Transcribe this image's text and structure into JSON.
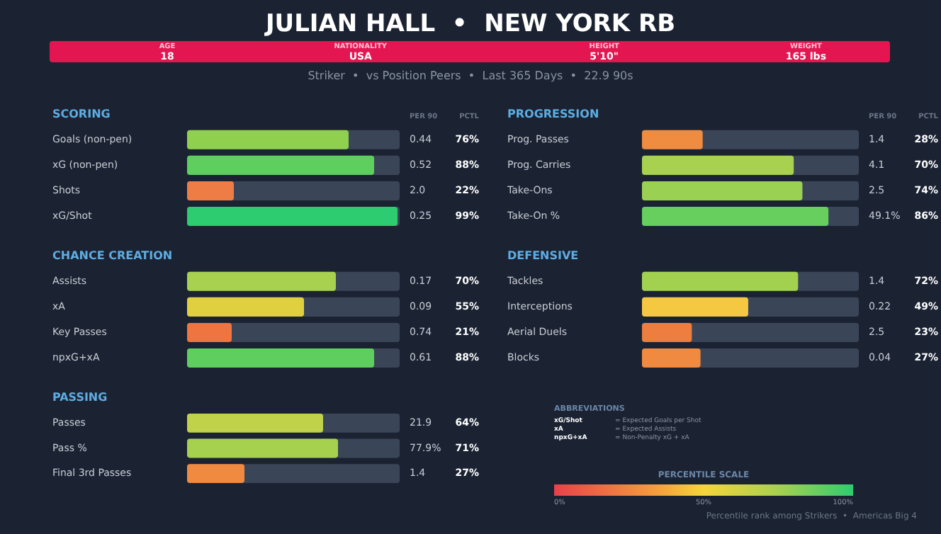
{
  "chart_data": [
    {
      "type": "other",
      "title": "JULIAN HALL  •  NEW YORK RB",
      "subtitle": "Striker  •  vs Position Peers  •  Last 365 Days  •  22.9 90s",
      "annotations": [
        "AGE",
        "18",
        "NATIONALITY",
        "USA",
        "HEIGHT",
        "5'10\"",
        "WEIGHT",
        "165 lbs"
      ]
    },
    {
      "type": "bar",
      "orientation": "horizontal",
      "title": "SCORING",
      "categories": [
        "Goals (non-pen)",
        "xG (non-pen)",
        "Shots",
        "xG/Shot"
      ],
      "values": [
        76,
        88,
        22,
        99
      ],
      "colors": [
        "#8fd14f",
        "#5ecf5e",
        "#ee7d45",
        "#2ecc71"
      ],
      "xlim": [
        0,
        100
      ],
      "tick_labels": "y",
      "value_labels": [
        "76%",
        "88%",
        "22%",
        "99%"
      ],
      "annotations": [
        "PER 90",
        "PCTL",
        "0.44",
        "0.52",
        "2.0",
        "0.25"
      ]
    },
    {
      "type": "bar",
      "orientation": "horizontal",
      "title": "PROGRESSION",
      "categories": [
        "Prog. Passes",
        "Prog. Carries",
        "Take-Ons",
        "Take-On %"
      ],
      "values": [
        28,
        70,
        74,
        86
      ],
      "colors": [
        "#ef8c40",
        "#a7d14f",
        "#9bd152",
        "#66cf5e"
      ],
      "xlim": [
        0,
        100
      ],
      "tick_labels": "y",
      "value_labels": [
        "28%",
        "70%",
        "74%",
        "86%"
      ],
      "annotations": [
        "PER 90",
        "PCTL",
        "1.4",
        "4.1",
        "2.5",
        "49.1%"
      ]
    },
    {
      "type": "bar",
      "orientation": "horizontal",
      "title": "CHANCE CREATION",
      "categories": [
        "Assists",
        "xA",
        "Key Passes",
        "npxG+xA"
      ],
      "values": [
        70,
        55,
        21,
        88
      ],
      "colors": [
        "#a7d14f",
        "#e0d040",
        "#ee7440",
        "#5ecf5e"
      ],
      "xlim": [
        0,
        100
      ],
      "tick_labels": "y",
      "value_labels": [
        "70%",
        "55%",
        "21%",
        "88%"
      ],
      "annotations": [
        "0.17",
        "0.09",
        "0.74",
        "0.61"
      ]
    },
    {
      "type": "bar",
      "orientation": "horizontal",
      "title": "DEFENSIVE",
      "categories": [
        "Tackles",
        "Interceptions",
        "Aerial Duels",
        "Blocks"
      ],
      "values": [
        72,
        49,
        23,
        27
      ],
      "colors": [
        "#a2d14f",
        "#f5c842",
        "#ee7d40",
        "#ef8a40"
      ],
      "xlim": [
        0,
        100
      ],
      "tick_labels": "y",
      "value_labels": [
        "72%",
        "49%",
        "23%",
        "27%"
      ],
      "annotations": [
        "1.4",
        "0.22",
        "2.5",
        "0.04"
      ]
    },
    {
      "type": "bar",
      "orientation": "horizontal",
      "title": "PASSING",
      "categories": [
        "Passes",
        "Pass %",
        "Final 3rd Passes"
      ],
      "values": [
        64,
        71,
        27
      ],
      "colors": [
        "#c0d24a",
        "#a5d14f",
        "#ef8a40"
      ],
      "xlim": [
        0,
        100
      ],
      "tick_labels": "y",
      "value_labels": [
        "64%",
        "71%",
        "27%"
      ],
      "annotations": [
        "21.9",
        "77.9%",
        "1.4"
      ]
    },
    {
      "type": "other",
      "title": "ABBREVIATIONS",
      "annotations": [
        "xG/Shot",
        "= Expected Goals per Shot",
        "xA",
        "= Expected Assists",
        "npxG+xA",
        "= Non-Penalty xG + xA"
      ]
    },
    {
      "type": "other",
      "title": "PERCENTILE SCALE",
      "annotations": [
        "0%",
        "50%",
        "100%",
        "Percentile rank among Strikers  •  Americas Big 4"
      ]
    }
  ]
}
